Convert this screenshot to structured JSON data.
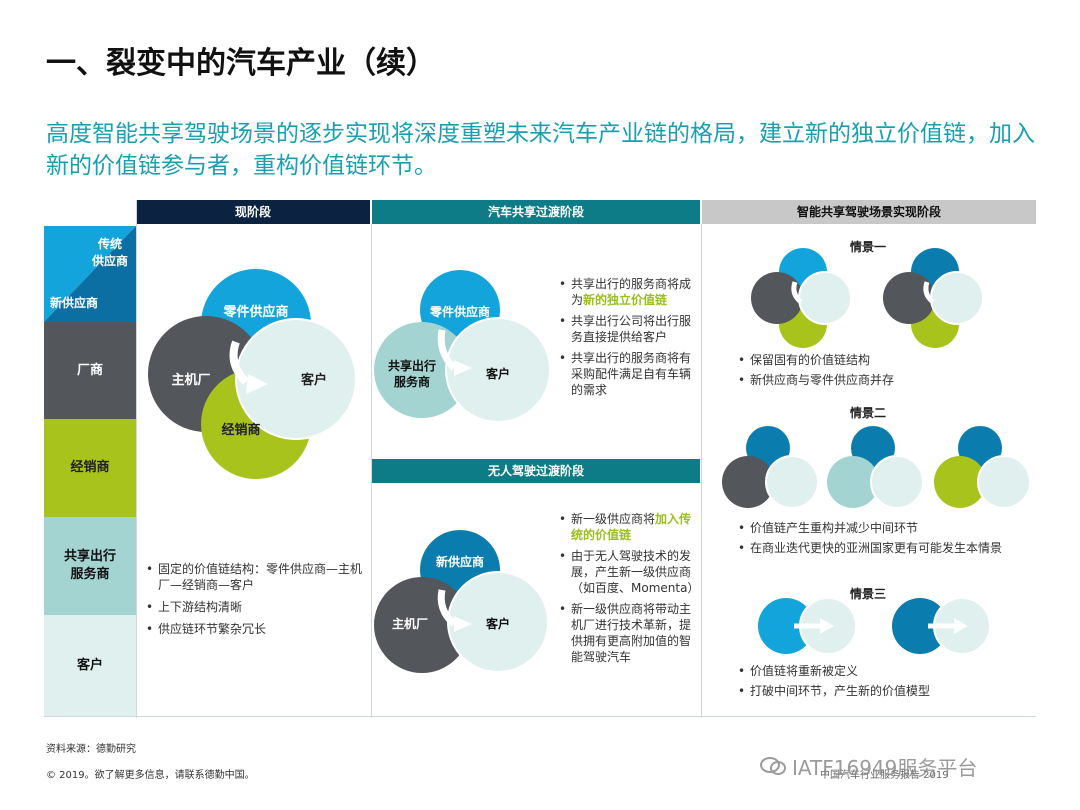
{
  "title": "一、裂变中的汽车产业（续）",
  "subtitle": "高度智能共享驾驶场景的逐步实现将深度重塑未来汽车产业链的格局，建立新的独立价值链，加入新的价值链参与者，重构价值链环节。",
  "headers": {
    "current": "现阶段",
    "sharing": "汽车共享过渡阶段",
    "autonomous": "无人驾驶过渡阶段",
    "smart": "智能共享驾驶场景实现阶段"
  },
  "side": {
    "traditional": "传统\n供应商",
    "new_supplier": "新供应商",
    "oem": "厂商",
    "dealer": "经销商",
    "sharing_provider": "共享出行\n服务商",
    "customer": "客户"
  },
  "colors": {
    "navy": "#0b2341",
    "teal": "#0e7c86",
    "grey": "#c8c8c8",
    "light_blue": "#13a4db",
    "dark_grey": "#53565a",
    "lime": "#a8c31c",
    "pale_teal": "#a3d4d1",
    "pale": "#dff0ee",
    "blue": "#0a7dae"
  },
  "current": {
    "labels": {
      "parts": "零件供应商",
      "oem": "主机厂",
      "dealer": "经销商",
      "customer": "客户"
    },
    "bullets": [
      "固定的价值链结构：零件供应商—主机厂—经销商—客户",
      "上下游结构清晰",
      "供应链环节繁杂冗长"
    ]
  },
  "sharing": {
    "labels": {
      "parts": "零件供应商",
      "provider": "共享出行\n服务商",
      "customer": "客户"
    },
    "bullets": [
      {
        "pre": "共享出行的服务商将成为",
        "hl": "新的独立价值链",
        "post": ""
      },
      {
        "pre": "共享出行公司将出行服务直接提供给客户",
        "hl": "",
        "post": ""
      },
      {
        "pre": "共享出行的服务商将有采购配件满足自有车辆的需求",
        "hl": "",
        "post": ""
      }
    ]
  },
  "autonomous": {
    "labels": {
      "new_supplier": "新供应商",
      "oem": "主机厂",
      "customer": "客户"
    },
    "bullets": [
      {
        "pre": "新一级供应商将",
        "hl": "加入传统的价值链",
        "post": ""
      },
      {
        "pre": "由于无人驾驶技术的发展，产生新一级供应商（如百度、Momenta）",
        "hl": "",
        "post": ""
      },
      {
        "pre": "新一级供应商将带动主机厂进行技术革新，提供拥有更高附加值的智能驾驶汽车",
        "hl": "",
        "post": ""
      }
    ]
  },
  "scenarios": [
    {
      "name": "情景一",
      "bullets": [
        "保留固有的价值链结构",
        "新供应商与零件供应商并存"
      ]
    },
    {
      "name": "情景二",
      "bullets": [
        "价值链产生重构并减少中间环节",
        "在商业迭代更快的亚洲国家更有可能发生本情景"
      ]
    },
    {
      "name": "情景三",
      "bullets": [
        "价值链将重新被定义",
        "打破中间环节，产生新的价值模型"
      ]
    }
  ],
  "footer": {
    "source": "资料来源：德勤研究",
    "copyright": "© 2019。欲了解更多信息，请联系德勤中国。",
    "report": "中国汽车行业服务报告 2019",
    "watermark": "IATF16949服务平台"
  }
}
